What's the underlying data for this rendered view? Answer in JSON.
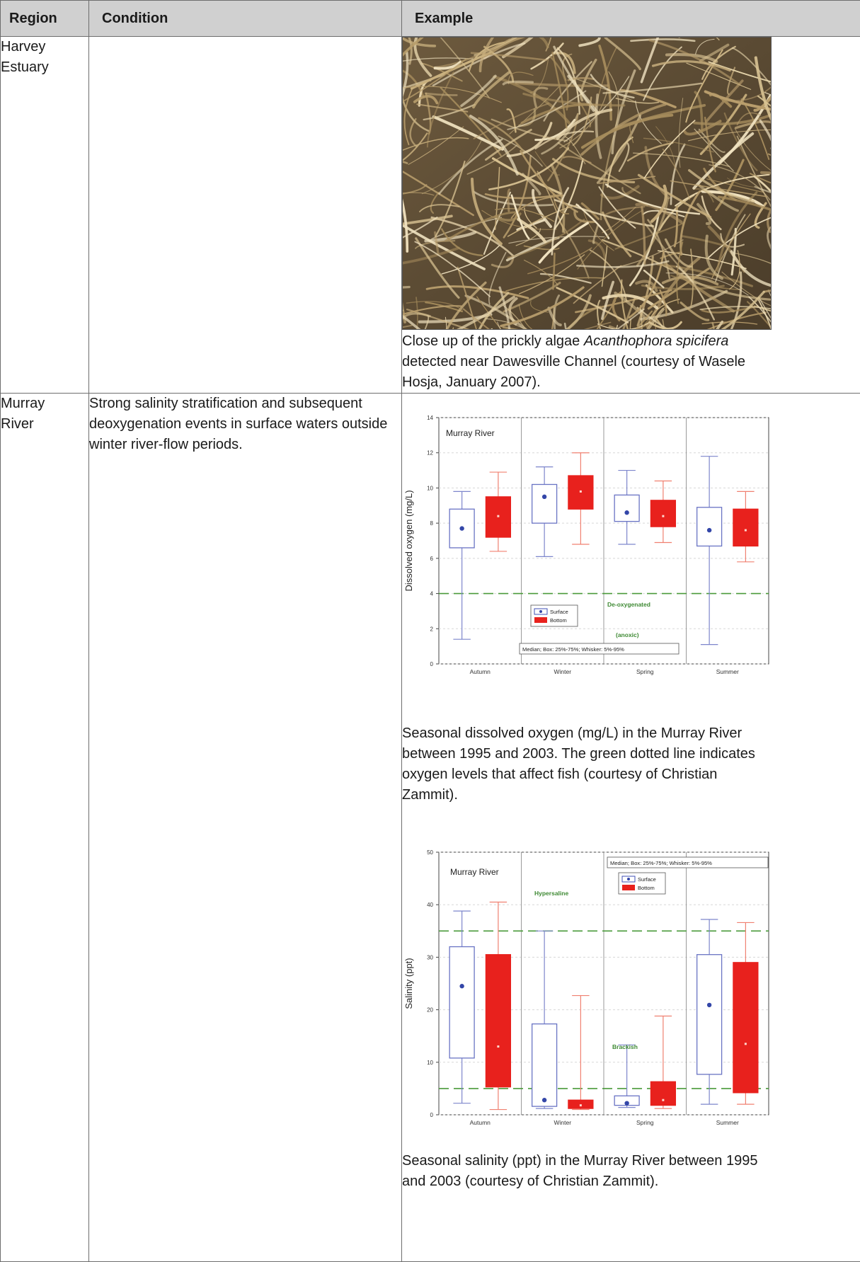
{
  "headers": {
    "region": "Region",
    "condition": "Condition",
    "example": "Example"
  },
  "rows": [
    {
      "region": "Harvey\nEstuary",
      "condition": "",
      "caption_pre": "Close up of the prickly algae ",
      "caption_italic": "Acanthophora spicifera",
      "caption_post": " detected near Dawesville Channel (courtesy of Wasele Hosja, January 2007)."
    },
    {
      "region": "Murray\nRiver",
      "condition": "Strong salinity stratification and subsequent deoxygenation events in surface waters outside winter river-flow periods.",
      "caption_do": "Seasonal dissolved oxygen (mg/L) in the Murray River between 1995 and 2003. The green dotted line indicates oxygen levels that affect fish (courtesy of Christian Zammit).",
      "caption_sal": "Seasonal salinity (ppt) in the Murray River between 1995 and 2003 (courtesy of Christian Zammit)."
    }
  ],
  "chart_data": [
    {
      "type": "box",
      "title": "Murray River",
      "ylabel": "Dissolved oxygen (mg/L)",
      "ylim": [
        0,
        14
      ],
      "yticks": [
        0,
        2,
        4,
        6,
        8,
        10,
        12,
        14
      ],
      "categories": [
        "Autumn",
        "Winter",
        "Spring",
        "Summer"
      ],
      "series": [
        {
          "name": "Surface",
          "color": "#3f4fb5",
          "boxes": [
            {
              "whisker_low": 1.4,
              "q1": 6.6,
              "median": 7.7,
              "q3": 8.8,
              "whisker_high": 9.8
            },
            {
              "whisker_low": 6.1,
              "q1": 8.0,
              "median": 9.5,
              "q3": 10.2,
              "whisker_high": 11.2
            },
            {
              "whisker_low": 6.8,
              "q1": 8.1,
              "median": 8.6,
              "q3": 9.6,
              "whisker_high": 11.0
            },
            {
              "whisker_low": 1.1,
              "q1": 6.7,
              "median": 7.6,
              "q3": 8.9,
              "whisker_high": 11.8
            }
          ]
        },
        {
          "name": "Bottom",
          "color": "#e8211d",
          "boxes": [
            {
              "whisker_low": 6.4,
              "q1": 7.2,
              "median": 8.4,
              "q3": 9.5,
              "whisker_high": 10.9
            },
            {
              "whisker_low": 6.8,
              "q1": 8.8,
              "median": 9.8,
              "q3": 10.7,
              "whisker_high": 12.0
            },
            {
              "whisker_low": 6.9,
              "q1": 7.8,
              "median": 8.4,
              "q3": 9.3,
              "whisker_high": 10.4
            },
            {
              "whisker_low": 5.8,
              "q1": 6.7,
              "median": 7.6,
              "q3": 8.8,
              "whisker_high": 9.8
            }
          ]
        }
      ],
      "threshold": {
        "value": 4,
        "color": "#4a9a3a"
      },
      "annotations": [
        "De-oxygenated",
        "(anoxic)"
      ],
      "legend_note": "Median; Box: 25%-75%; Whisker: 5%-95%",
      "legend": [
        "Surface",
        "Bottom"
      ]
    },
    {
      "type": "box",
      "title": "Murray River",
      "ylabel": "Salinity (ppt)",
      "ylim": [
        0,
        50
      ],
      "yticks": [
        0,
        10,
        20,
        30,
        40,
        50
      ],
      "categories": [
        "Autumn",
        "Winter",
        "Spring",
        "Summer"
      ],
      "series": [
        {
          "name": "Surface",
          "color": "#3f4fb5",
          "boxes": [
            {
              "whisker_low": 2.2,
              "q1": 10.8,
              "median": 24.5,
              "q3": 32.0,
              "whisker_high": 38.8
            },
            {
              "whisker_low": 1.2,
              "q1": 1.6,
              "median": 2.8,
              "q3": 17.3,
              "whisker_high": 35.0
            },
            {
              "whisker_low": 1.4,
              "q1": 1.8,
              "median": 2.2,
              "q3": 3.6,
              "whisker_high": 13.3
            },
            {
              "whisker_low": 2.0,
              "q1": 7.7,
              "median": 20.9,
              "q3": 30.5,
              "whisker_high": 37.2
            }
          ]
        },
        {
          "name": "Bottom",
          "color": "#e8211d",
          "boxes": [
            {
              "whisker_low": 1.0,
              "q1": 5.3,
              "median": 13.0,
              "q3": 30.5,
              "whisker_high": 40.5
            },
            {
              "whisker_low": 1.0,
              "q1": 1.2,
              "median": 1.8,
              "q3": 2.8,
              "whisker_high": 22.7
            },
            {
              "whisker_low": 1.2,
              "q1": 1.8,
              "median": 2.8,
              "q3": 6.3,
              "whisker_high": 18.8
            },
            {
              "whisker_low": 2.0,
              "q1": 4.2,
              "median": 13.5,
              "q3": 29.0,
              "whisker_high": 36.6
            }
          ]
        }
      ],
      "thresholds": [
        {
          "value": 35,
          "color": "#4a9a3a"
        },
        {
          "value": 5,
          "color": "#4a9a3a"
        }
      ],
      "annotations": [
        "Hypersaline",
        "Brackish"
      ],
      "legend_note": "Median; Box: 25%-75%; Whisker: 5%-95%",
      "legend": [
        "Surface",
        "Bottom"
      ]
    }
  ]
}
